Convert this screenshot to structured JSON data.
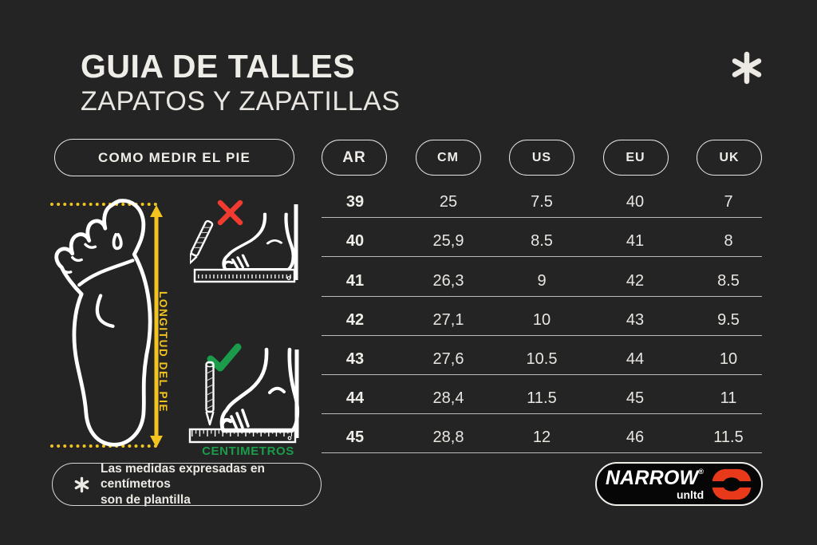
{
  "colors": {
    "background": "#242424",
    "text": "#ECE9E4",
    "accent_yellow": "#F3C41F",
    "accent_green": "#1B9C4A",
    "accent_red": "#F23B30",
    "brand_orange": "#E8391A",
    "separator_line": "#E3E0DB"
  },
  "icons": {
    "top_right": "asterisk",
    "note_bullet": "asterisk",
    "wrong_way": "x-mark",
    "right_way": "check-mark",
    "foot_sole": "foot-outline",
    "measure_arrow": "double-arrow-vertical"
  },
  "header": {
    "title": "GUIA DE TALLES",
    "subtitle": "ZAPATOS Y ZAPATILLAS"
  },
  "measure": {
    "button_label": "COMO MEDIR EL PIE",
    "length_label": "LONGITUD DEL PIE",
    "unit_label": "CENTIMETROS"
  },
  "note": {
    "line1": "Las medidas expresadas en centímetros",
    "line2": "son de plantilla"
  },
  "table": {
    "headers": [
      "AR",
      "CM",
      "US",
      "EU",
      "UK"
    ],
    "rows": [
      [
        "39",
        "25",
        "7.5",
        "40",
        "7"
      ],
      [
        "40",
        "25,9",
        "8.5",
        "41",
        "8"
      ],
      [
        "41",
        "26,3",
        "9",
        "42",
        "8.5"
      ],
      [
        "42",
        "27,1",
        "10",
        "43",
        "9.5"
      ],
      [
        "43",
        "27,6",
        "10.5",
        "44",
        "10"
      ],
      [
        "44",
        "28,4",
        "11.5",
        "45",
        "11"
      ],
      [
        "45",
        "28,8",
        "12",
        "46",
        "11.5"
      ]
    ]
  },
  "brand": {
    "name": "NARROW",
    "reg": "®",
    "sub": "unltd"
  }
}
